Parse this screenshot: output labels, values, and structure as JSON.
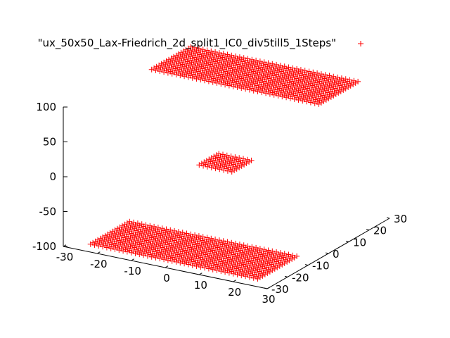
{
  "chart_data": {
    "type": "scatter",
    "title": "",
    "xlabel": "",
    "ylabel": "",
    "zlabel": "",
    "view": "3d",
    "legend_position": "top-right",
    "xlim": [
      -30,
      30
    ],
    "ylim": [
      -30,
      30
    ],
    "zlim": [
      -100,
      100
    ],
    "x_ticks": [
      "-30",
      "-20",
      "-10",
      "0",
      "10",
      "20",
      "30"
    ],
    "y_ticks": [
      "-30",
      "-20",
      "-10",
      "0",
      "10",
      "20",
      "30"
    ],
    "z_ticks": [
      "100",
      "50",
      "0",
      "-50",
      "-100"
    ],
    "grid_size": [
      50,
      50
    ],
    "series": [
      {
        "name": "\"ux_50x50_Lax-Friedrich_2d_split1_IC0_div5till5_1Steps\"",
        "color": "#ff0000",
        "marker": "+",
        "regions": [
          {
            "x_range": [
              -25,
              25
            ],
            "y_range": [
              -25,
              -5
            ],
            "z": -100
          },
          {
            "x_range": [
              -25,
              25
            ],
            "y_range": [
              5,
              25
            ],
            "z": 100
          },
          {
            "x_range": [
              -5,
              5
            ],
            "y_range": [
              -5,
              5
            ],
            "z": 0
          }
        ]
      }
    ]
  }
}
